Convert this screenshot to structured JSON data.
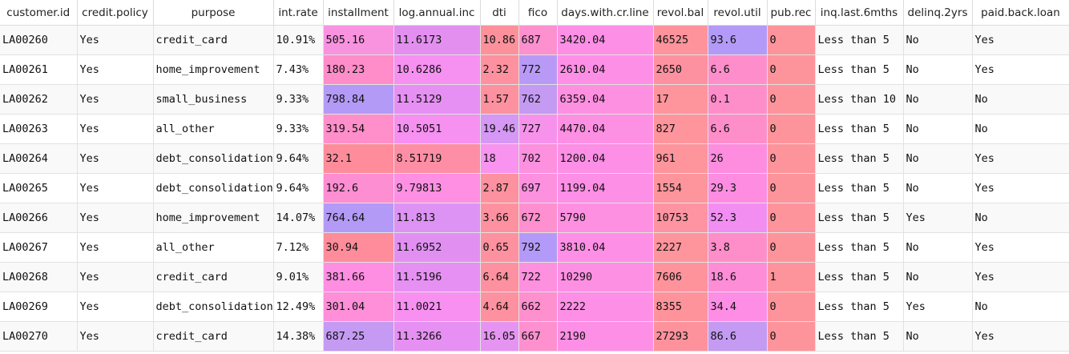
{
  "table": {
    "columns": [
      "customer.id",
      "credit.policy",
      "purpose",
      "int.rate",
      "installment",
      "log.annual.inc",
      "dti",
      "fico",
      "days.with.cr.line",
      "revol.bal",
      "revol.util",
      "pub.rec",
      "inq.last.6mths",
      "delinq.2yrs",
      "paid.back.loan"
    ],
    "rows": [
      [
        "LA00260",
        "Yes",
        "credit_card",
        "10.91%",
        "505.16",
        "11.6173",
        "10.86",
        "687",
        "3420.04",
        "46525",
        "93.6",
        "0",
        "Less than 5",
        "No",
        "Yes"
      ],
      [
        "LA00261",
        "Yes",
        "home_improvement",
        "7.43%",
        "180.23",
        "10.6286",
        "2.32",
        "772",
        "2610.04",
        "2650",
        "6.6",
        "0",
        "Less than 5",
        "No",
        "Yes"
      ],
      [
        "LA00262",
        "Yes",
        "small_business",
        "9.33%",
        "798.84",
        "11.5129",
        "1.57",
        "762",
        "6359.04",
        "17",
        "0.1",
        "0",
        "Less than 10",
        "No",
        "No"
      ],
      [
        "LA00263",
        "Yes",
        "all_other",
        "9.33%",
        "319.54",
        "10.5051",
        "19.46",
        "727",
        "4470.04",
        "827",
        "6.6",
        "0",
        "Less than 5",
        "No",
        "No"
      ],
      [
        "LA00264",
        "Yes",
        "debt_consolidation",
        "9.64%",
        "32.1",
        "8.51719",
        "18",
        "702",
        "1200.04",
        "961",
        "26",
        "0",
        "Less than 5",
        "No",
        "Yes"
      ],
      [
        "LA00265",
        "Yes",
        "debt_consolidation",
        "9.64%",
        "192.6",
        "9.79813",
        "2.87",
        "697",
        "1199.04",
        "1554",
        "29.3",
        "0",
        "Less than 5",
        "No",
        "Yes"
      ],
      [
        "LA00266",
        "Yes",
        "home_improvement",
        "14.07%",
        "764.64",
        "11.813",
        "3.66",
        "672",
        "5790",
        "10753",
        "52.3",
        "0",
        "Less than 5",
        "Yes",
        "No"
      ],
      [
        "LA00267",
        "Yes",
        "all_other",
        "7.12%",
        "30.94",
        "11.6952",
        "0.65",
        "792",
        "3810.04",
        "2227",
        "3.8",
        "0",
        "Less than 5",
        "No",
        "Yes"
      ],
      [
        "LA00268",
        "Yes",
        "credit_card",
        "9.01%",
        "381.66",
        "11.5196",
        "6.64",
        "722",
        "10290",
        "7606",
        "18.6",
        "1",
        "Less than 5",
        "No",
        "Yes"
      ],
      [
        "LA00269",
        "Yes",
        "debt_consolidation",
        "12.49%",
        "301.04",
        "11.0021",
        "4.64",
        "662",
        "2222",
        "8355",
        "34.4",
        "0",
        "Less than 5",
        "Yes",
        "No"
      ],
      [
        "LA00270",
        "Yes",
        "credit_card",
        "14.38%",
        "687.25",
        "11.3266",
        "16.05",
        "667",
        "2190",
        "27293",
        "86.6",
        "0",
        "Less than 5",
        "No",
        "Yes"
      ]
    ],
    "cell_colors": [
      [
        null,
        null,
        null,
        null,
        "#f993e0",
        "#e38ff0",
        "#fd919b",
        "#fd90cf",
        "#fe8fe6",
        "#fe939c",
        "#b49af8",
        "#fe949b",
        null,
        null,
        null
      ],
      [
        null,
        null,
        null,
        null,
        "#fe8dc9",
        "#f690f1",
        "#fe919f",
        "#b89af6",
        "#fe8fe6",
        "#fe91a0",
        "#fe8ecb",
        "#fe949b",
        null,
        null,
        null
      ],
      [
        null,
        null,
        null,
        null,
        "#b39af6",
        "#e590f2",
        "#fe919f",
        "#c49af3",
        "#fe90e2",
        "#fe959c",
        "#fe8ec9",
        "#fe949b",
        null,
        null,
        null
      ],
      [
        null,
        null,
        null,
        null,
        "#fe8fca",
        "#f690f1",
        "#d598f5",
        "#f792ec",
        "#fe90e4",
        "#fe959c",
        "#fe8ec9",
        "#fe949b",
        null,
        null,
        null
      ],
      [
        null,
        null,
        null,
        null,
        "#fe8c9a",
        "#fe8ea5",
        "#f893ef",
        "#fe90e0",
        "#fe8fe6",
        "#fe959c",
        "#fe8ddf",
        "#fe949b",
        null,
        null,
        null
      ],
      [
        null,
        null,
        null,
        null,
        "#fe8ed2",
        "#fe8fe3",
        "#fe919f",
        "#fe90e0",
        "#fe8fe6",
        "#fe959c",
        "#fe8de2",
        "#fe949b",
        null,
        null,
        null
      ],
      [
        null,
        null,
        null,
        null,
        "#b39af6",
        "#dc93f3",
        "#fe919f",
        "#fe90cf",
        "#fe90e2",
        "#fe94a2",
        "#f28ef2",
        "#fe949b",
        null,
        null,
        null
      ],
      [
        null,
        null,
        null,
        null,
        "#fe8c9a",
        "#e190f2",
        "#fe919f",
        "#b49af8",
        "#fe8fe6",
        "#fe959c",
        "#fe8ec9",
        "#fe949b",
        null,
        null,
        null
      ],
      [
        null,
        null,
        null,
        null,
        "#fe8ee2",
        "#e590f2",
        "#fe919f",
        "#fe90e0",
        "#fe90e4",
        "#fe939c",
        "#fe8dd8",
        "#fe949b",
        null,
        null,
        null
      ],
      [
        null,
        null,
        null,
        null,
        "#fe8fd8",
        "#f790f1",
        "#fe919f",
        "#fe90cf",
        "#fe8fe6",
        "#fe939c",
        "#fe8de6",
        "#fe949b",
        null,
        null,
        null
      ],
      [
        null,
        null,
        null,
        null,
        "#c49af3",
        "#e590f2",
        "#e694f1",
        "#fe90cf",
        "#fe8fe6",
        "#fe929c",
        "#c49af3",
        "#fe949b",
        null,
        null,
        null
      ]
    ]
  }
}
